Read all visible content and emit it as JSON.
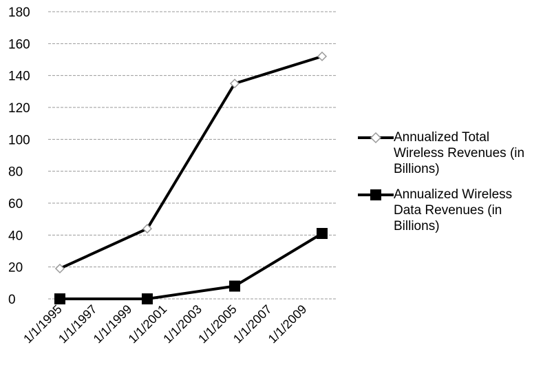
{
  "chart_data": {
    "type": "line",
    "x": [
      "1/1/1995",
      "1/1/1997",
      "1/1/1999",
      "1/1/2001",
      "1/1/2003",
      "1/1/2005",
      "1/1/2007",
      "1/1/2009"
    ],
    "ylim": [
      0,
      180
    ],
    "yticks": [
      0,
      20,
      40,
      60,
      80,
      100,
      120,
      140,
      160,
      180
    ],
    "grid": true,
    "legend_position": "right",
    "series": [
      {
        "name": "Annualized Total Wireless Revenues (in Billions)",
        "marker": "diamond",
        "color": "#000000",
        "points": [
          {
            "x": "1/1/1995",
            "y": 19
          },
          {
            "x": "1/1/2000",
            "y": 44
          },
          {
            "x": "1/1/2005",
            "y": 135
          },
          {
            "x": "1/1/2010",
            "y": 152
          }
        ]
      },
      {
        "name": "Annualized Wireless Data Revenues (in Billions)",
        "marker": "square",
        "color": "#000000",
        "points": [
          {
            "x": "1/1/1995",
            "y": 0
          },
          {
            "x": "1/1/2000",
            "y": 0
          },
          {
            "x": "1/1/2005",
            "y": 8
          },
          {
            "x": "1/1/2010",
            "y": 41
          }
        ]
      }
    ]
  }
}
